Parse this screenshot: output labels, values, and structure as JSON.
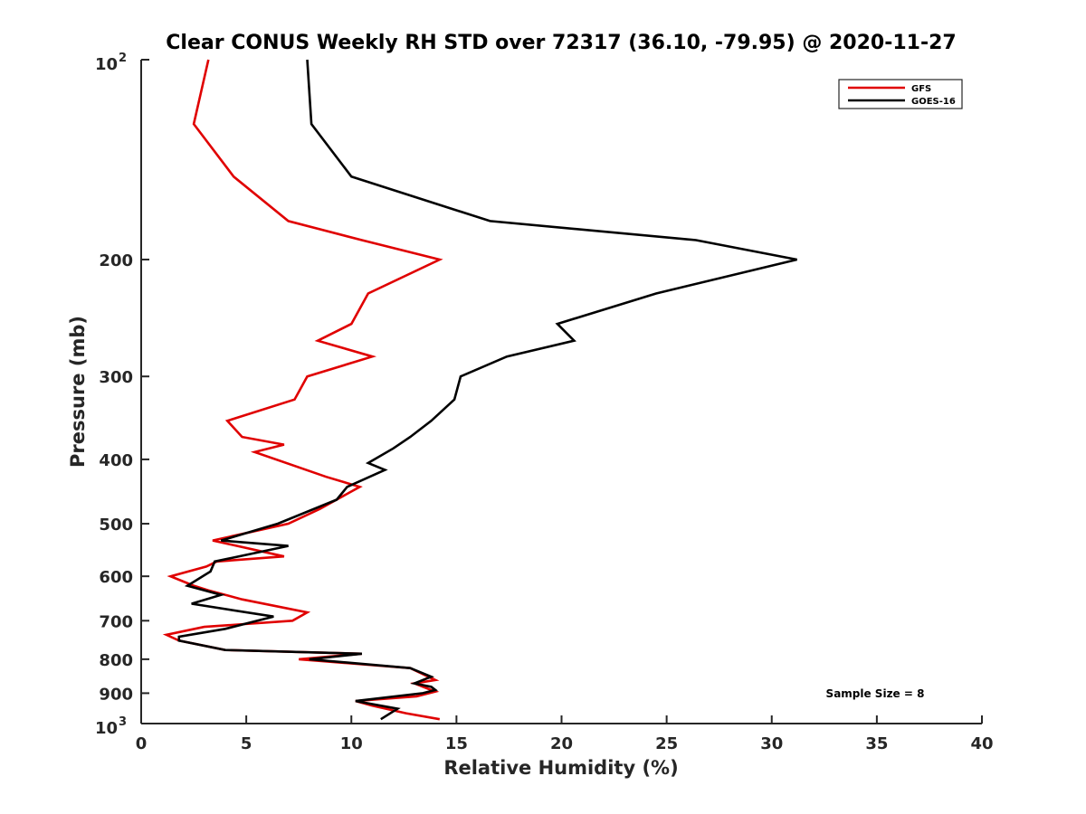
{
  "chart_data": {
    "type": "line",
    "title": "Clear CONUS Weekly RH STD over 72317 (36.10, -79.95) @ 2020-11-27",
    "xlabel": "Relative Humidity (%)",
    "ylabel": "Pressure (mb)",
    "xlim": [
      0,
      40
    ],
    "ylim": [
      100,
      1000
    ],
    "y_scale": "log",
    "y_reversed": true,
    "grid": false,
    "legend_position": "top-right",
    "x_ticks": [
      "0",
      "5",
      "10",
      "15",
      "20",
      "25",
      "30",
      "35",
      "40"
    ],
    "y_ticks": [
      {
        "value": 100,
        "base": "10",
        "exp": "2"
      },
      {
        "value": 200,
        "label": "200"
      },
      {
        "value": 300,
        "label": "300"
      },
      {
        "value": 400,
        "label": "400"
      },
      {
        "value": 500,
        "label": "500"
      },
      {
        "value": 600,
        "label": "600"
      },
      {
        "value": 700,
        "label": "700"
      },
      {
        "value": 800,
        "label": "800"
      },
      {
        "value": 900,
        "label": "900"
      },
      {
        "value": 1000,
        "base": "10",
        "exp": "3"
      }
    ],
    "annotation": "Sample Size = 8",
    "series": [
      {
        "name": "GFS",
        "color": "#e00000",
        "points": [
          [
            3.2,
            100
          ],
          [
            2.5,
            125
          ],
          [
            4.4,
            150
          ],
          [
            7.0,
            175
          ],
          [
            10.5,
            187
          ],
          [
            14.2,
            200
          ],
          [
            10.8,
            225
          ],
          [
            10.0,
            250
          ],
          [
            8.4,
            265
          ],
          [
            11.0,
            280
          ],
          [
            7.9,
            300
          ],
          [
            7.3,
            325
          ],
          [
            4.1,
            350
          ],
          [
            4.8,
            370
          ],
          [
            6.8,
            380
          ],
          [
            5.4,
            390
          ],
          [
            8.8,
            425
          ],
          [
            10.4,
            440
          ],
          [
            8.5,
            475
          ],
          [
            7.0,
            500
          ],
          [
            3.4,
            530
          ],
          [
            6.8,
            560
          ],
          [
            3.6,
            570
          ],
          [
            3.1,
            580
          ],
          [
            1.4,
            600
          ],
          [
            2.5,
            620
          ],
          [
            3.2,
            630
          ],
          [
            4.8,
            650
          ],
          [
            7.9,
            680
          ],
          [
            7.2,
            700
          ],
          [
            3.0,
            715
          ],
          [
            1.2,
            735
          ],
          [
            1.8,
            750
          ],
          [
            4.0,
            775
          ],
          [
            10.5,
            785
          ],
          [
            7.5,
            800
          ],
          [
            12.8,
            825
          ],
          [
            14.0,
            860
          ],
          [
            13.0,
            870
          ],
          [
            13.4,
            880
          ],
          [
            14.0,
            895
          ],
          [
            13.1,
            910
          ],
          [
            10.2,
            925
          ],
          [
            11.0,
            940
          ],
          [
            12.6,
            965
          ],
          [
            14.2,
            985
          ]
        ]
      },
      {
        "name": "GOES-16",
        "color": "#000000",
        "points": [
          [
            7.9,
            100
          ],
          [
            8.1,
            125
          ],
          [
            10.0,
            150
          ],
          [
            16.6,
            175
          ],
          [
            26.4,
            187
          ],
          [
            31.2,
            200
          ],
          [
            24.5,
            225
          ],
          [
            19.8,
            250
          ],
          [
            20.6,
            265
          ],
          [
            17.4,
            280
          ],
          [
            15.2,
            300
          ],
          [
            14.9,
            325
          ],
          [
            13.8,
            350
          ],
          [
            12.8,
            370
          ],
          [
            12.0,
            385
          ],
          [
            10.8,
            405
          ],
          [
            11.6,
            415
          ],
          [
            9.8,
            440
          ],
          [
            9.3,
            460
          ],
          [
            6.5,
            500
          ],
          [
            3.8,
            530
          ],
          [
            7.0,
            540
          ],
          [
            3.5,
            570
          ],
          [
            3.3,
            590
          ],
          [
            2.2,
            620
          ],
          [
            3.8,
            640
          ],
          [
            2.4,
            660
          ],
          [
            6.3,
            690
          ],
          [
            4.0,
            720
          ],
          [
            1.8,
            740
          ],
          [
            1.8,
            750
          ],
          [
            4.0,
            775
          ],
          [
            10.5,
            785
          ],
          [
            8.0,
            800
          ],
          [
            12.8,
            825
          ],
          [
            13.8,
            850
          ],
          [
            13.0,
            870
          ],
          [
            13.8,
            880
          ],
          [
            14.0,
            890
          ],
          [
            13.4,
            900
          ],
          [
            10.2,
            925
          ],
          [
            12.2,
            950
          ],
          [
            11.4,
            985
          ]
        ]
      }
    ]
  }
}
